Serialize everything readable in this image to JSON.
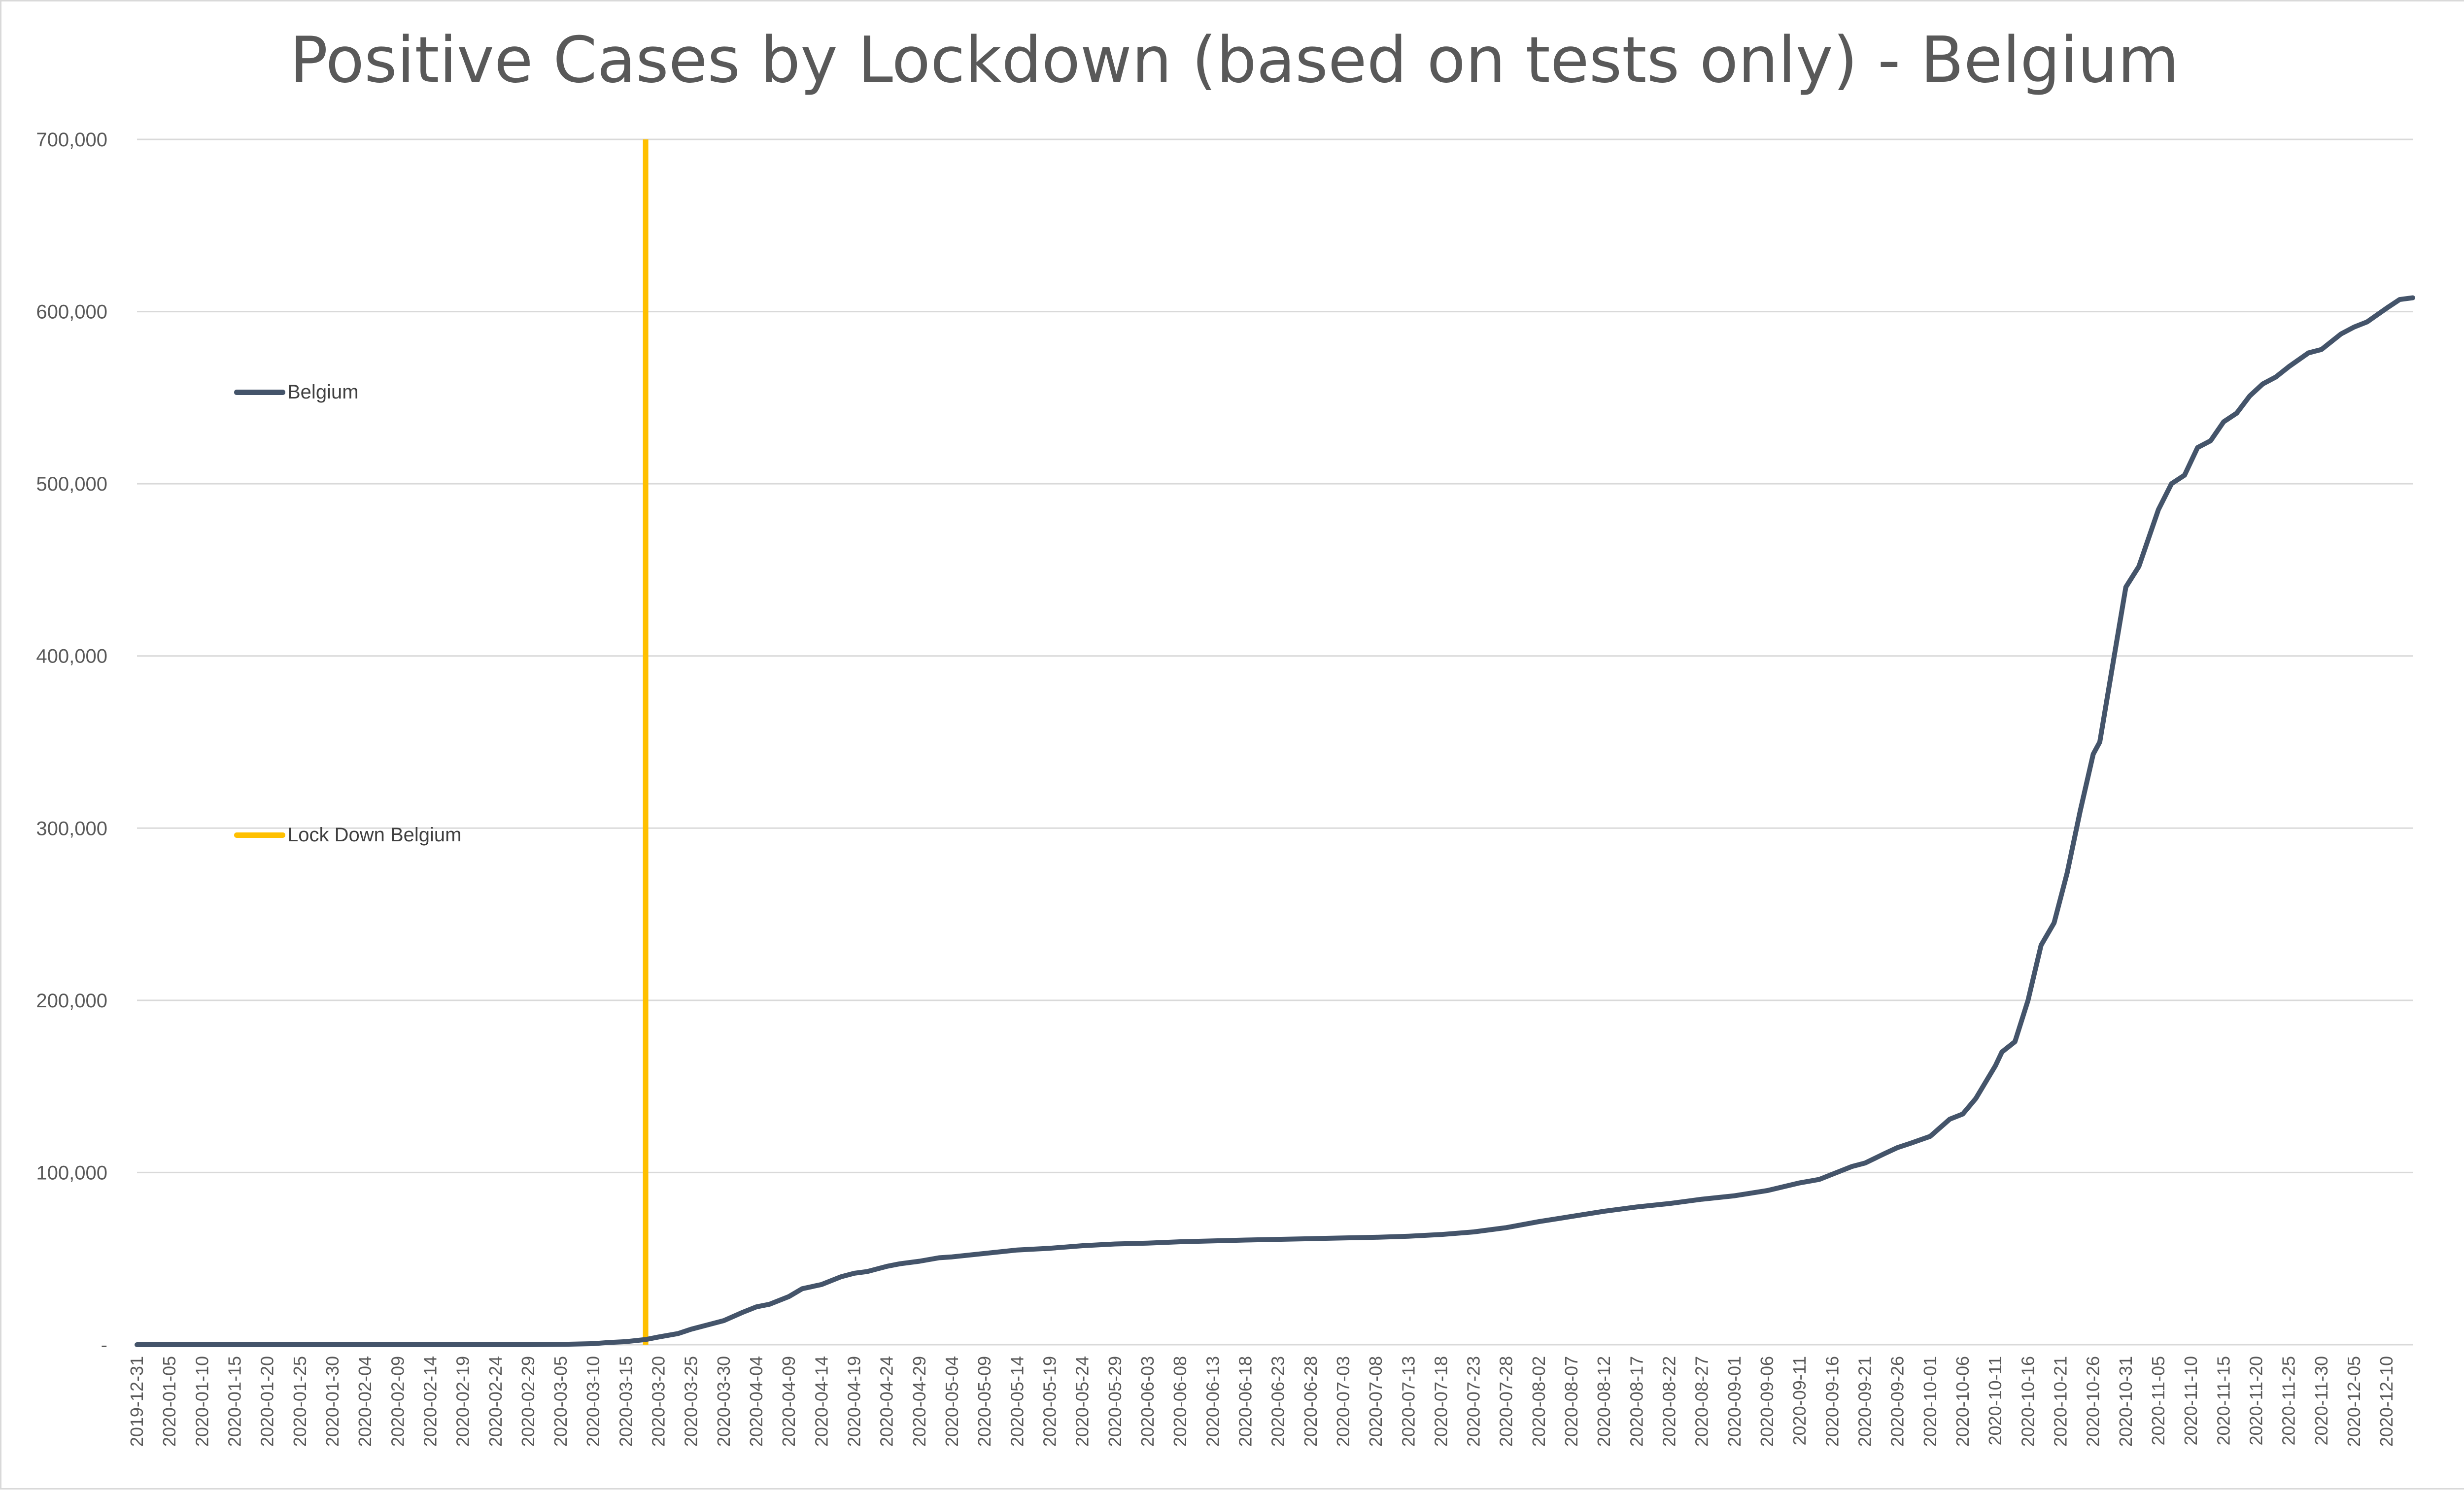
{
  "chart_data": {
    "type": "line",
    "title": "Positive Cases by Lockdown (based on tests only) - Belgium",
    "xlabel": "",
    "ylabel": "",
    "ylim": [
      0,
      700000
    ],
    "yticks": [
      0,
      100000,
      200000,
      300000,
      400000,
      500000,
      600000,
      700000
    ],
    "ytick_labels": [
      "-",
      "100,000",
      "200,000",
      "300,000",
      "400,000",
      "500,000",
      "600,000",
      "700,000"
    ],
    "grid": "horizontal",
    "xlim": [
      "2019-12-31",
      "2020-12-14"
    ],
    "xtick_labels": [
      "2019-12-31",
      "2020-01-05",
      "2020-01-10",
      "2020-01-15",
      "2020-01-20",
      "2020-01-25",
      "2020-01-30",
      "2020-02-04",
      "2020-02-09",
      "2020-02-14",
      "2020-02-19",
      "2020-02-24",
      "2020-02-29",
      "2020-03-05",
      "2020-03-10",
      "2020-03-15",
      "2020-03-20",
      "2020-03-25",
      "2020-03-30",
      "2020-04-04",
      "2020-04-09",
      "2020-04-14",
      "2020-04-19",
      "2020-04-24",
      "2020-04-29",
      "2020-05-04",
      "2020-05-09",
      "2020-05-14",
      "2020-05-19",
      "2020-05-24",
      "2020-05-29",
      "2020-06-03",
      "2020-06-08",
      "2020-06-13",
      "2020-06-18",
      "2020-06-23",
      "2020-06-28",
      "2020-07-03",
      "2020-07-08",
      "2020-07-13",
      "2020-07-18",
      "2020-07-23",
      "2020-07-28",
      "2020-08-02",
      "2020-08-07",
      "2020-08-12",
      "2020-08-17",
      "2020-08-22",
      "2020-08-27",
      "2020-09-01",
      "2020-09-06",
      "2020-09-11",
      "2020-09-16",
      "2020-09-21",
      "2020-09-26",
      "2020-10-01",
      "2020-10-06",
      "2020-10-11",
      "2020-10-16",
      "2020-10-21",
      "2020-10-26",
      "2020-10-31",
      "2020-11-05",
      "2020-11-10",
      "2020-11-15",
      "2020-11-20",
      "2020-11-25",
      "2020-11-30",
      "2020-12-05",
      "2020-12-10"
    ],
    "legend_position": "left",
    "series": [
      {
        "name": "Belgium",
        "color": "#44546a",
        "points": [
          [
            "2019-12-31",
            0
          ],
          [
            "2020-02-29",
            0
          ],
          [
            "2020-03-05",
            200
          ],
          [
            "2020-03-10",
            600
          ],
          [
            "2020-03-12",
            1200
          ],
          [
            "2020-03-15",
            1800
          ],
          [
            "2020-03-18",
            3000
          ],
          [
            "2020-03-20",
            4500
          ],
          [
            "2020-03-23",
            6500
          ],
          [
            "2020-03-25",
            9000
          ],
          [
            "2020-03-28",
            12000
          ],
          [
            "2020-03-30",
            14000
          ],
          [
            "2020-04-02",
            19000
          ],
          [
            "2020-04-04",
            22000
          ],
          [
            "2020-04-06",
            23500
          ],
          [
            "2020-04-09",
            28000
          ],
          [
            "2020-04-11",
            32500
          ],
          [
            "2020-04-14",
            35000
          ],
          [
            "2020-04-17",
            39500
          ],
          [
            "2020-04-19",
            41500
          ],
          [
            "2020-04-21",
            42500
          ],
          [
            "2020-04-24",
            45500
          ],
          [
            "2020-04-26",
            47000
          ],
          [
            "2020-04-29",
            48500
          ],
          [
            "2020-05-02",
            50500
          ],
          [
            "2020-05-04",
            51000
          ],
          [
            "2020-05-09",
            53000
          ],
          [
            "2020-05-14",
            55000
          ],
          [
            "2020-05-19",
            56000
          ],
          [
            "2020-05-24",
            57500
          ],
          [
            "2020-05-29",
            58500
          ],
          [
            "2020-06-03",
            59000
          ],
          [
            "2020-06-08",
            59800
          ],
          [
            "2020-06-13",
            60300
          ],
          [
            "2020-06-18",
            60800
          ],
          [
            "2020-06-23",
            61200
          ],
          [
            "2020-06-28",
            61600
          ],
          [
            "2020-07-03",
            62000
          ],
          [
            "2020-07-08",
            62400
          ],
          [
            "2020-07-13",
            63000
          ],
          [
            "2020-07-18",
            64000
          ],
          [
            "2020-07-23",
            65500
          ],
          [
            "2020-07-28",
            68000
          ],
          [
            "2020-08-02",
            71500
          ],
          [
            "2020-08-07",
            74500
          ],
          [
            "2020-08-12",
            77500
          ],
          [
            "2020-08-17",
            80000
          ],
          [
            "2020-08-22",
            82000
          ],
          [
            "2020-08-27",
            84500
          ],
          [
            "2020-09-01",
            86500
          ],
          [
            "2020-09-06",
            89500
          ],
          [
            "2020-09-11",
            94000
          ],
          [
            "2020-09-14",
            96000
          ],
          [
            "2020-09-16",
            99000
          ],
          [
            "2020-09-19",
            103500
          ],
          [
            "2020-09-21",
            105500
          ],
          [
            "2020-09-24",
            111000
          ],
          [
            "2020-09-26",
            114500
          ],
          [
            "2020-09-28",
            117000
          ],
          [
            "2020-10-01",
            121000
          ],
          [
            "2020-10-04",
            131000
          ],
          [
            "2020-10-06",
            134000
          ],
          [
            "2020-10-08",
            143000
          ],
          [
            "2020-10-11",
            162000
          ],
          [
            "2020-10-12",
            170000
          ],
          [
            "2020-10-14",
            176000
          ],
          [
            "2020-10-16",
            200000
          ],
          [
            "2020-10-18",
            232000
          ],
          [
            "2020-10-20",
            245000
          ],
          [
            "2020-10-22",
            274000
          ],
          [
            "2020-10-24",
            310000
          ],
          [
            "2020-10-26",
            343000
          ],
          [
            "2020-10-27",
            350000
          ],
          [
            "2020-10-29",
            395000
          ],
          [
            "2020-10-31",
            440000
          ],
          [
            "2020-11-02",
            452000
          ],
          [
            "2020-11-05",
            485000
          ],
          [
            "2020-11-07",
            500000
          ],
          [
            "2020-11-09",
            505000
          ],
          [
            "2020-11-11",
            521000
          ],
          [
            "2020-11-13",
            525000
          ],
          [
            "2020-11-15",
            536000
          ],
          [
            "2020-11-17",
            541000
          ],
          [
            "2020-11-19",
            551000
          ],
          [
            "2020-11-21",
            558000
          ],
          [
            "2020-11-23",
            562000
          ],
          [
            "2020-11-25",
            568000
          ],
          [
            "2020-11-28",
            576000
          ],
          [
            "2020-11-30",
            578000
          ],
          [
            "2020-12-03",
            587000
          ],
          [
            "2020-12-05",
            591000
          ],
          [
            "2020-12-07",
            594000
          ],
          [
            "2020-12-10",
            602000
          ],
          [
            "2020-12-12",
            607000
          ],
          [
            "2020-12-14",
            608000
          ]
        ]
      },
      {
        "name": "Lock Down Belgium",
        "color": "#ffc000",
        "type": "vertical-line",
        "x": "2020-03-18",
        "y_range": [
          0,
          700000
        ]
      }
    ]
  }
}
